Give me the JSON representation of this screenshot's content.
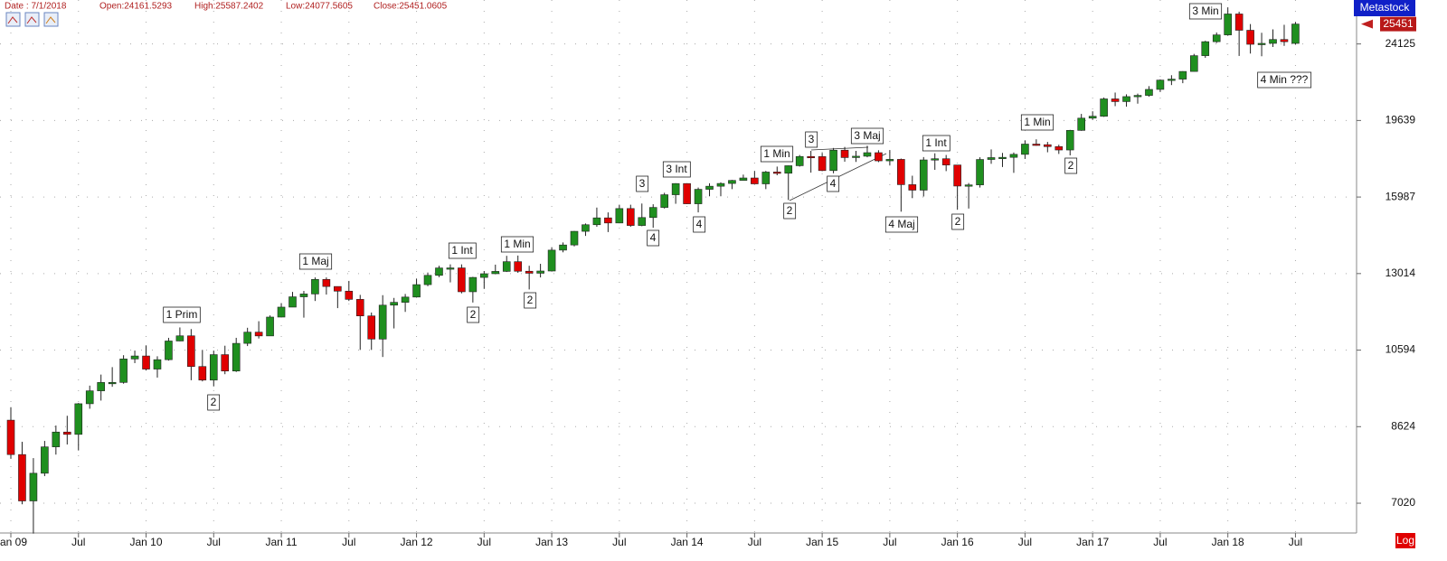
{
  "chart_data": {
    "type": "candlestick",
    "header": {
      "date": "Date : 7/1/2018",
      "open": "Open:24161.5293",
      "high": "High:25587.2402",
      "low": "Low:24077.5605",
      "close": "Close:25451.0605"
    },
    "brand": "Metastock",
    "scale_button": "Log",
    "log_scale": true,
    "grid": true,
    "up_color": "#1f8f1f",
    "down_color": "#e00000",
    "last_price": 25451,
    "categories": [
      "Jan 09",
      null,
      null,
      null,
      null,
      null,
      "Jul",
      null,
      null,
      null,
      null,
      null,
      "Jan 10",
      null,
      null,
      null,
      null,
      null,
      "Jul",
      null,
      null,
      null,
      null,
      null,
      "Jan 11",
      null,
      null,
      null,
      null,
      null,
      "Jul",
      null,
      null,
      null,
      null,
      null,
      "Jan 12",
      null,
      null,
      null,
      null,
      null,
      "Jul",
      null,
      null,
      null,
      null,
      null,
      "Jan 13",
      null,
      null,
      null,
      null,
      null,
      "Jul",
      null,
      null,
      null,
      null,
      null,
      "Jan 14",
      null,
      null,
      null,
      null,
      null,
      "Jul",
      null,
      null,
      null,
      null,
      null,
      "Jan 15",
      null,
      null,
      null,
      null,
      null,
      "Jul",
      null,
      null,
      null,
      null,
      null,
      "Jan 16",
      null,
      null,
      null,
      null,
      null,
      "Jul",
      null,
      null,
      null,
      null,
      null,
      "Jan 17",
      null,
      null,
      null,
      null,
      null,
      "Jul",
      null,
      null,
      null,
      null,
      null,
      "Jan 18",
      null,
      null,
      null,
      null,
      null,
      "Jul"
    ],
    "open": [
      8776,
      8001,
      7063,
      7609,
      8168,
      8500,
      8447,
      9172,
      9496,
      9712,
      9713,
      10345,
      10428,
      10067,
      10325,
      10857,
      11009,
      10137,
      9774,
      10466,
      10015,
      10788,
      11118,
      11006,
      11578,
      11892,
      12226,
      12320,
      12811,
      12570,
      12414,
      12143,
      11614,
      10913,
      11955,
      12046,
      12218,
      12633,
      12952,
      13212,
      13214,
      12393,
      12880,
      13009,
      13091,
      13437,
      13096,
      13026,
      13104,
      13861,
      14054,
      14579,
      14840,
      15116,
      14910,
      15500,
      14810,
      15130,
      15546,
      16086,
      16577,
      15699,
      16322,
      16458,
      16581,
      16717,
      16827,
      16563,
      17098,
      17043,
      17391,
      17828,
      17823,
      17165,
      18133,
      17776,
      17841,
      18011,
      17620,
      17690,
      16528,
      16285,
      17664,
      17720,
      17425,
      16466,
      16517,
      17685,
      17774,
      17787,
      17930,
      18432,
      18401,
      18308,
      18142,
      19124,
      19763,
      19864,
      20812,
      20663,
      20941,
      21009,
      21350,
      21891,
      21948,
      22405,
      23377,
      24272,
      24719,
      26149,
      25029,
      24103,
      24163,
      24416,
      24161.5293
    ],
    "high": [
      9088,
      8280,
      7925,
      8300,
      8650,
      8880,
      9190,
      9630,
      9920,
      10120,
      10450,
      10580,
      10730,
      10420,
      10950,
      11260,
      11210,
      10600,
      10580,
      10720,
      10950,
      11250,
      11450,
      11630,
      12020,
      12390,
      12420,
      12880,
      12880,
      12570,
      12760,
      12290,
      11720,
      12280,
      12190,
      12320,
      12840,
      13050,
      13290,
      13340,
      13340,
      12900,
      13100,
      13330,
      13650,
      13660,
      13290,
      13360,
      13970,
      14150,
      14590,
      14890,
      15540,
      15340,
      15660,
      15660,
      15710,
      15680,
      16170,
      16590,
      16590,
      16400,
      16590,
      16630,
      16740,
      16980,
      17150,
      17150,
      17350,
      17400,
      17900,
      18100,
      18000,
      18240,
      18290,
      18100,
      18350,
      18130,
      18140,
      17730,
      16930,
      17800,
      17980,
      17900,
      17410,
      16600,
      17790,
      18170,
      18000,
      18020,
      18620,
      18670,
      18540,
      18400,
      19150,
      19990,
      20130,
      20890,
      21170,
      21070,
      21110,
      21540,
      21930,
      22180,
      22420,
      23490,
      24330,
      24880,
      26620,
      26310,
      25450,
      24860,
      25090,
      25400,
      25587.2402
    ],
    "low": [
      7909,
      7000,
      6470,
      7550,
      8000,
      8220,
      8090,
      9050,
      9250,
      9600,
      9680,
      10230,
      10030,
      9840,
      10300,
      10850,
      9770,
      9740,
      9610,
      9930,
      9990,
      10710,
      10930,
      11010,
      11570,
      11890,
      11560,
      12090,
      12300,
      11860,
      12090,
      10600,
      10600,
      10400,
      11230,
      11740,
      12200,
      12580,
      12890,
      12710,
      12340,
      12040,
      12490,
      12990,
      13070,
      13040,
      12470,
      12880,
      13100,
      13780,
      14000,
      14400,
      14760,
      14550,
      14900,
      14760,
      14780,
      14720,
      15500,
      15700,
      15690,
      15340,
      16020,
      16020,
      16330,
      16720,
      16560,
      16330,
      16950,
      15860,
      17350,
      17070,
      17140,
      17040,
      17580,
      17570,
      17790,
      17560,
      17400,
      15370,
      15940,
      16010,
      17200,
      17140,
      15450,
      15500,
      16400,
      17480,
      17330,
      17060,
      17710,
      18350,
      18030,
      17950,
      17880,
      19100,
      19680,
      19830,
      20410,
      20380,
      20550,
      20940,
      21200,
      21600,
      21710,
      22400,
      23240,
      24190,
      24660,
      23360,
      23510,
      23340,
      23930,
      24000,
      24077.5605
    ],
    "close": [
      8001,
      7063,
      7609,
      8168,
      8500,
      8447,
      9172,
      9496,
      9712,
      9713,
      10345,
      10428,
      10067,
      10325,
      10857,
      11009,
      10137,
      9774,
      10466,
      10015,
      10788,
      11118,
      11006,
      11578,
      11892,
      12226,
      12320,
      12811,
      12570,
      12414,
      12143,
      11614,
      10913,
      11955,
      12046,
      12218,
      12633,
      12952,
      13212,
      13214,
      12393,
      12880,
      13009,
      13091,
      13437,
      13096,
      13026,
      13104,
      13861,
      14054,
      14579,
      14840,
      15116,
      14910,
      15500,
      14810,
      15130,
      15546,
      16086,
      16577,
      15699,
      16322,
      16458,
      16581,
      16717,
      16827,
      16563,
      17098,
      17043,
      17391,
      17828,
      17823,
      17165,
      18133,
      17776,
      17841,
      18011,
      17620,
      17690,
      16528,
      16285,
      17664,
      17720,
      17425,
      16466,
      16517,
      17685,
      17774,
      17787,
      17930,
      18432,
      18401,
      18308,
      18142,
      19124,
      19763,
      19864,
      20812,
      20663,
      20941,
      21009,
      21350,
      21891,
      21948,
      22405,
      23377,
      24272,
      24719,
      26149,
      25029,
      24103,
      24163,
      24416,
      24271,
      25451.0605
    ],
    "ylim": [
      6480,
      27150
    ],
    "yticks": [
      7020,
      8624,
      10594,
      13014,
      15987,
      19639,
      24125
    ],
    "annotations": [
      "1 Prim",
      "2",
      "1 Maj",
      "1 Int",
      "2",
      "1 Min",
      "2",
      "3",
      "4",
      "3 Int",
      "4",
      "1 Min",
      "2",
      "3",
      "4",
      "3 Maj",
      "4 Maj",
      "1 Int",
      "2",
      "1 Min",
      "2",
      "3 Min",
      "4 Min ???"
    ]
  }
}
